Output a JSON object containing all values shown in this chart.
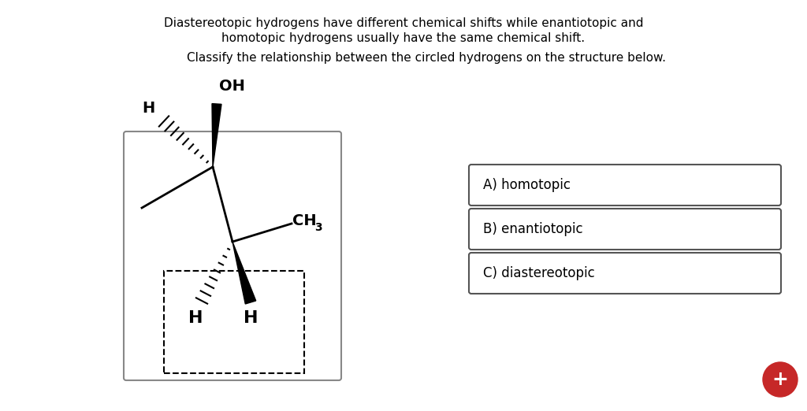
{
  "bg_color": "#ffffff",
  "title_line1": "Diastereotopic hydrogens have different chemical shifts while enantiotopic and",
  "title_line2": "homotopic hydrogens usually have the same chemical shift.",
  "subtitle": "Classify the relationship between the circled hydrogens on the structure below.",
  "options": [
    "A) homotopic",
    "B) enantiotopic",
    "C) diastereotopic"
  ],
  "fab_color": "#c62828",
  "fab_text": "+"
}
